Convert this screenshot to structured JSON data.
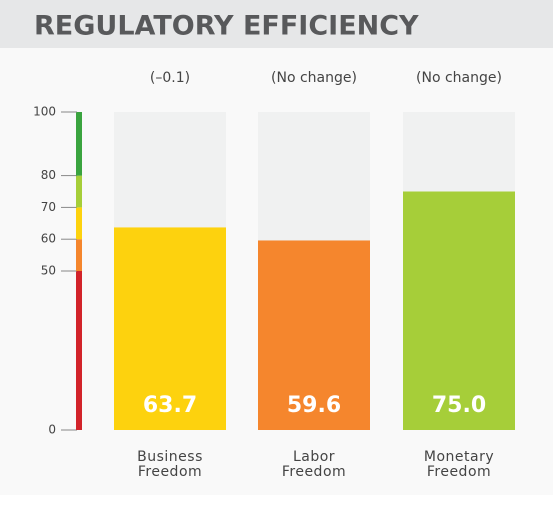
{
  "chart_data": {
    "type": "bar",
    "title": "REGULATORY EFFICIENCY",
    "categories": [
      "Business Freedom",
      "Labor Freedom",
      "Monetary Freedom"
    ],
    "values": [
      63.7,
      59.6,
      75.0
    ],
    "value_labels": [
      "63.7",
      "59.6",
      "75.0"
    ],
    "annotations": [
      "(–0.1)",
      "(No change)",
      "(No change)"
    ],
    "colors": [
      "#fdd20e",
      "#f5862d",
      "#a6ce39"
    ],
    "ylim": [
      0,
      100
    ],
    "yticks": [
      0,
      50,
      60,
      70,
      80,
      100
    ],
    "scale_colors": [
      "#d2232a",
      "#f5862d",
      "#fdd20e",
      "#a6ce39",
      "#3aa43f"
    ]
  }
}
